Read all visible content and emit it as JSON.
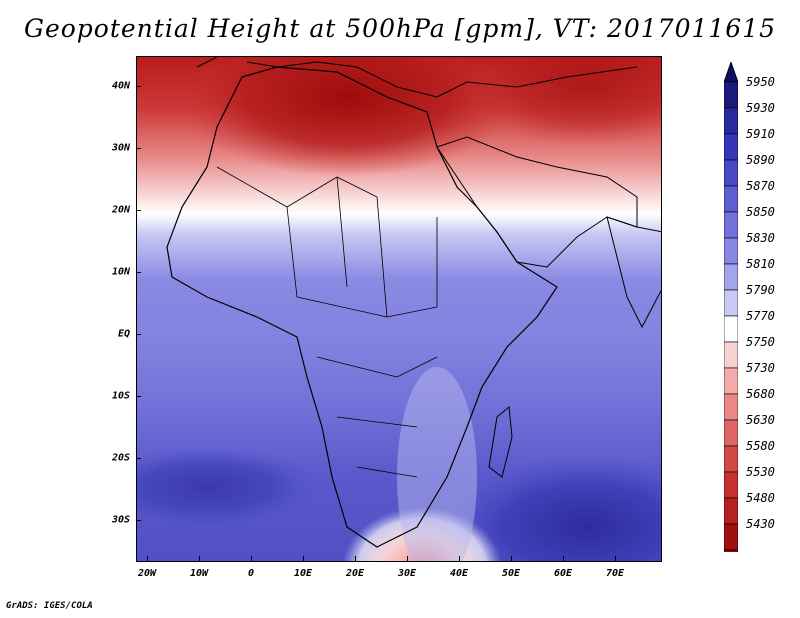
{
  "title": "Geopotential Height at 500hPa [gpm], VT: 2017011615",
  "footer": "GrADS: IGES/COLA",
  "map": {
    "lat_labels": [
      "40N",
      "30N",
      "20N",
      "10N",
      "EQ",
      "10S",
      "20S",
      "30S"
    ],
    "lon_labels": [
      "20W",
      "10W",
      "0",
      "10E",
      "20E",
      "30E",
      "40E",
      "50E",
      "60E",
      "70E"
    ]
  },
  "colorbar": {
    "labels": [
      "5950",
      "5930",
      "5910",
      "5890",
      "5870",
      "5850",
      "5830",
      "5810",
      "5790",
      "5770",
      "5750",
      "5730",
      "5680",
      "5630",
      "5580",
      "5530",
      "5480",
      "5430"
    ],
    "colors": [
      "#1a1a7a",
      "#2a2aa0",
      "#3636b8",
      "#4848c8",
      "#5e5ed2",
      "#7272dc",
      "#8888e2",
      "#a4a4ec",
      "#c8c8f4",
      "#ffffff",
      "#f8d0d0",
      "#f2aaaa",
      "#ea8888",
      "#e06666",
      "#d44848",
      "#c83030",
      "#b82020",
      "#a01010"
    ],
    "top_arrow_color": "#0e0e60",
    "bottom_arrow_color": "#8a0a0a"
  }
}
